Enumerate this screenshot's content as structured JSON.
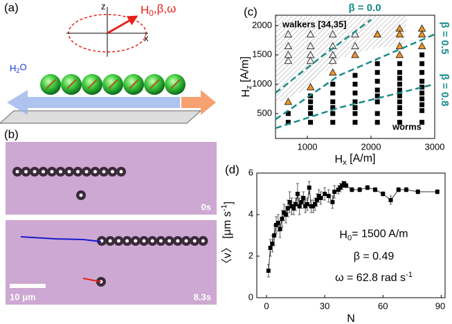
{
  "panel_a": {
    "label": "(a)",
    "z": "z",
    "x": "x",
    "field": [
      "H",
      "0",
      ",β,ω"
    ],
    "water": [
      "H",
      "2",
      "O"
    ]
  },
  "panel_b": {
    "label": "(b)",
    "time_1": "0s",
    "time_2": "8.3s",
    "scale_bar": "10 μm"
  },
  "chart_data": [
    {
      "type": "scatter",
      "label": "(c)",
      "xlabel": [
        "H",
        "x",
        " [A/m]"
      ],
      "ylabel": [
        "H",
        "z",
        " [A/m]"
      ],
      "xlim": [
        500,
        3000
      ],
      "ylim": [
        75,
        2175
      ],
      "xticks": [
        1000,
        2000,
        3000
      ],
      "yticks": [
        500,
        1000,
        1500,
        2000
      ],
      "grid": false,
      "series": [
        {
          "marker": "open-triangle",
          "color": "#333333",
          "x": [
            700,
            700,
            700,
            700,
            1050,
            1050,
            1050,
            1050,
            1400,
            1400,
            1400,
            1400,
            1750,
            1750,
            2100
          ],
          "y": [
            1850,
            1650,
            1500,
            1400,
            1850,
            1650,
            1500,
            1400,
            1850,
            1650,
            1500,
            1400,
            1850,
            1650,
            1850
          ]
        },
        {
          "marker": "triangle",
          "color": "#f7941d",
          "x": [
            700,
            1050,
            1400,
            1750,
            2100,
            2450,
            2450,
            2450,
            2450,
            2800,
            2800,
            2800
          ],
          "y": [
            700,
            950,
            1200,
            1500,
            1850,
            1950,
            1850,
            1650,
            1500,
            1950,
            1850,
            1650
          ]
        },
        {
          "marker": "square",
          "color": "#000000",
          "x": [
            700,
            700,
            1050,
            1050,
            1050,
            1050,
            1050,
            1400,
            1400,
            1400,
            1400,
            1400,
            1400,
            1750,
            1750,
            1750,
            1750,
            1750,
            1750,
            1750,
            2100,
            2100,
            2100,
            2100,
            2100,
            2100,
            2100,
            2100,
            2450,
            2450,
            2450,
            2450,
            2450,
            2450,
            2450,
            2450,
            2450,
            2450,
            2800,
            2800,
            2800,
            2800,
            2800,
            2800,
            2800,
            2800,
            2800,
            2800
          ],
          "y": [
            500,
            350,
            800,
            700,
            600,
            500,
            350,
            1000,
            850,
            700,
            600,
            500,
            350,
            1150,
            1000,
            850,
            700,
            600,
            500,
            350,
            1350,
            1200,
            1050,
            900,
            800,
            700,
            500,
            350,
            1350,
            1200,
            1100,
            1000,
            900,
            800,
            700,
            600,
            500,
            350,
            1500,
            1350,
            1200,
            1050,
            950,
            850,
            750,
            650,
            550,
            350
          ]
        }
      ],
      "lines": [
        {
          "label": "β = 0.0",
          "color": "#1a8a8a",
          "x": [
            500,
            1200,
            2000
          ],
          "y": [
            850,
            1450,
            2100
          ]
        },
        {
          "label": "β = 0.5",
          "color": "#1a8a8a",
          "x": [
            500,
            1500,
            3000
          ],
          "y": [
            400,
            1150,
            1850
          ]
        },
        {
          "label": "β = 0.8",
          "color": "#1a8a8a",
          "x": [
            500,
            1500,
            3000
          ],
          "y": [
            250,
            600,
            1000
          ]
        }
      ],
      "annotations": [
        "walkers [34,35]",
        "worms"
      ]
    },
    {
      "type": "line",
      "label": "(d)",
      "xlabel": [
        "N"
      ],
      "ylabel": [
        "〈v〉 [μm s",
        "-1",
        "]"
      ],
      "xlim": [
        -5,
        92
      ],
      "ylim": [
        0,
        6
      ],
      "xticks": [
        0,
        30,
        60,
        90
      ],
      "yticks": [
        0,
        2,
        4,
        6
      ],
      "grid": false,
      "series": [
        {
          "color": "#000000",
          "x": [
            1,
            2,
            3,
            4,
            5,
            6,
            7,
            8,
            9,
            10,
            11,
            12,
            13,
            14,
            15,
            16,
            17,
            18,
            19,
            20,
            21,
            22,
            23,
            24,
            25,
            26,
            27,
            28,
            30,
            32,
            34,
            35,
            37,
            38,
            39,
            40,
            41,
            44,
            48,
            52,
            56,
            60,
            64,
            68,
            72,
            78,
            88
          ],
          "y": [
            1.3,
            2.4,
            2.6,
            3.0,
            3.5,
            3.6,
            3.3,
            3.8,
            4.1,
            4.0,
            4.3,
            4.6,
            4.4,
            4.3,
            4.5,
            5.0,
            4.4,
            4.6,
            4.8,
            4.4,
            4.5,
            5.3,
            4.4,
            4.4,
            4.5,
            4.7,
            4.9,
            4.8,
            5.0,
            4.9,
            4.6,
            5.1,
            5.2,
            5.3,
            5.4,
            5.5,
            5.4,
            5.2,
            5.2,
            5.3,
            5.2,
            5.0,
            4.7,
            5.2,
            5.2,
            5.1,
            5.1
          ],
          "errors": [
            0.3,
            0.4,
            0.4,
            0.5,
            0.4,
            0.4,
            0.4,
            0.4,
            0.4,
            0.4,
            0.4,
            0.5,
            0.4,
            0.3,
            0.3,
            0.5,
            0.4,
            0.3,
            0.3,
            0.3,
            0.3,
            0.3,
            0.3,
            0.3,
            0.3,
            0.3,
            0.3,
            0.3,
            0.3,
            0.3,
            0.3,
            0.3,
            0.2,
            0.2,
            0.2,
            0.1,
            0.1,
            0.1,
            0.1,
            0.1,
            0.1,
            0.1,
            0.2,
            0.1,
            0.1,
            0.1,
            0.1
          ]
        }
      ],
      "annotations": [
        [
          "H",
          "0",
          "= 1500 A/m"
        ],
        [
          "β = 0.49"
        ],
        [
          "ω = 62.8 rad s",
          "-1"
        ]
      ]
    }
  ]
}
